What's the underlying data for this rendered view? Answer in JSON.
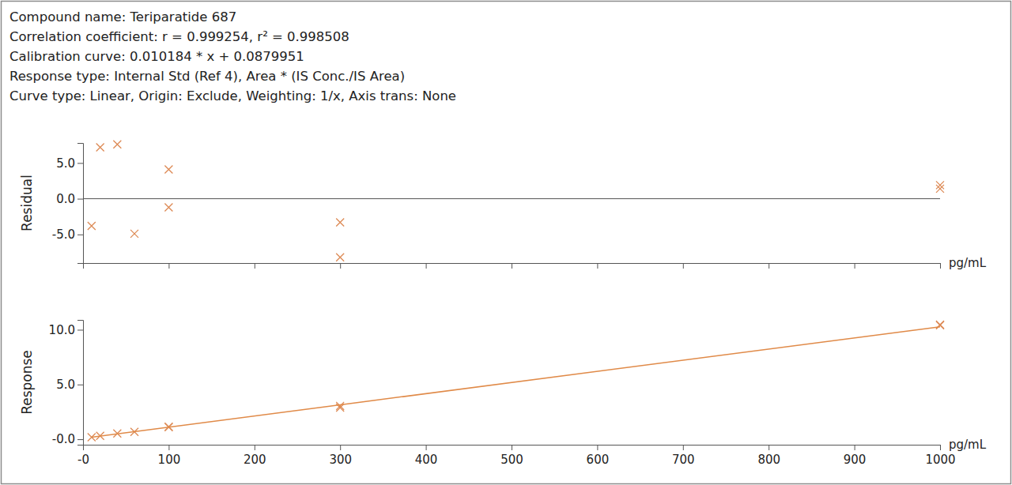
{
  "header": [
    "Compound name: Teriparatide 687",
    "Correlation coefficient: r = 0.999254, r² = 0.998508",
    "Calibration curve: 0.010184 * x + 0.0879951",
    "Response type: Internal Std (Ref 4), Area * (IS Conc./IS Area)",
    "Curve type: Linear, Origin: Exclude, Weighting: 1/x, Axis trans: None"
  ],
  "chart_data": [
    {
      "type": "scatter",
      "ylabel": "Residual",
      "xlabel": "pg/mL",
      "xlim": [
        0,
        1000
      ],
      "xticks": [
        0,
        100,
        200,
        300,
        400,
        500,
        600,
        700,
        800,
        900,
        1000
      ],
      "ylim": [
        -9.0,
        7.8
      ],
      "yticks": [
        {
          "value": -5,
          "label": "-5.0"
        },
        {
          "value": 0,
          "label": "0.0"
        },
        {
          "value": 5,
          "label": "5.0"
        }
      ],
      "tick_labels": "y",
      "hline": 0,
      "series": [
        {
          "type": "scatter",
          "marker": "x",
          "color": "#dd8a55",
          "x": [
            10,
            20,
            40,
            60,
            100,
            100,
            300,
            300,
            1000,
            1000
          ],
          "values": [
            -3.8,
            7.2,
            7.6,
            -4.9,
            4.1,
            -1.2,
            -3.3,
            -8.2,
            1.9,
            1.4
          ]
        }
      ]
    },
    {
      "type": "scatter",
      "ylabel": "Response",
      "xlabel": "pg/mL",
      "xlim": [
        0,
        1000
      ],
      "xticks": [
        {
          "value": 0,
          "label": "-0"
        },
        100,
        200,
        300,
        400,
        500,
        600,
        700,
        800,
        900,
        1000
      ],
      "ylim": [
        -0.5,
        10.9
      ],
      "yticks": [
        {
          "value": 0,
          "label": "-0.0"
        },
        {
          "value": 5,
          "label": "5.0"
        },
        {
          "value": 10,
          "label": "10.0"
        }
      ],
      "series": [
        {
          "type": "scatter",
          "marker": "x",
          "color": "#dd8a55",
          "x": [
            10,
            20,
            40,
            60,
            100,
            100,
            300,
            300,
            1000,
            1000
          ],
          "values": [
            0.186,
            0.306,
            0.526,
            0.669,
            1.148,
            1.094,
            3.042,
            2.893,
            10.465,
            10.414
          ]
        },
        {
          "type": "line",
          "color": "#e08a48",
          "x": [
            10,
            1000
          ],
          "values": [
            0.19,
            10.272
          ]
        }
      ]
    }
  ]
}
